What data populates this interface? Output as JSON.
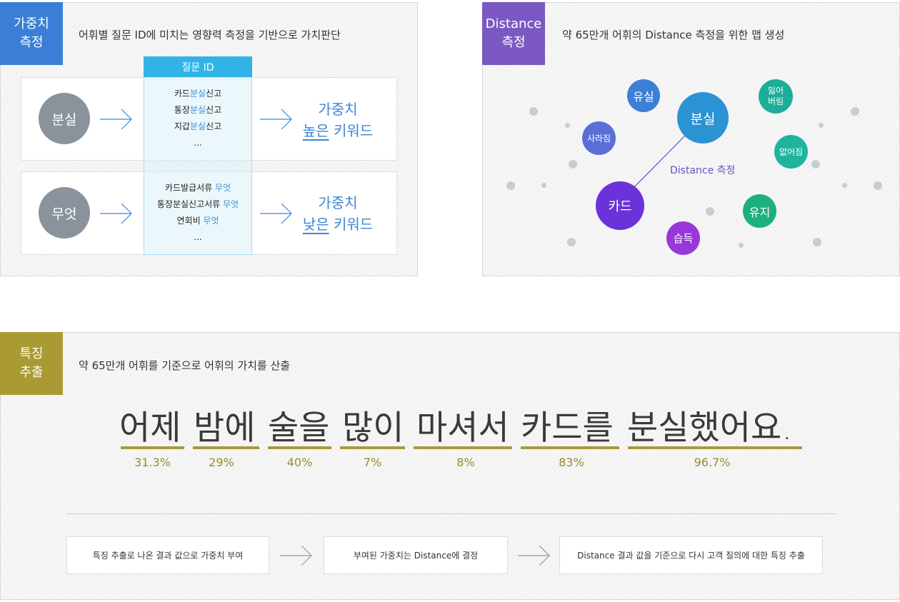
{
  "panel1": {
    "tag": [
      "가중치",
      "측정"
    ],
    "desc": "어휘별 질문 ID에 미치는 영향력 측정을 기반으로 가치판단",
    "colors": {
      "tag": "#3a7fd5",
      "header": "#32b3e8",
      "accent": "#3c86d2"
    },
    "column_header": "질문 ID",
    "rows": [
      {
        "word": "분실",
        "questions": [
          {
            "pre": "카드",
            "hl": "분실",
            "post": "신고"
          },
          {
            "pre": "통장",
            "hl": "분실",
            "post": "신고"
          },
          {
            "pre": "지갑",
            "hl": "분실",
            "post": "신고"
          },
          {
            "pre": "...",
            "hl": "",
            "post": ""
          }
        ],
        "result_line1": "가중치",
        "result_u": "높은",
        "result_rest": " 키워드"
      },
      {
        "word": "무엇",
        "questions": [
          {
            "pre": "카드발급서류 ",
            "hl": "무엇",
            "post": ""
          },
          {
            "pre": "통장분실신고서류 ",
            "hl": "무엇",
            "post": ""
          },
          {
            "pre": "연회비 ",
            "hl": "무엇",
            "post": ""
          },
          {
            "pre": "...",
            "hl": "",
            "post": ""
          }
        ],
        "result_line1": "가중치",
        "result_u": "낮은",
        "result_rest": " 키워드"
      }
    ]
  },
  "panel2": {
    "tag": [
      "Distance",
      "측정"
    ],
    "desc": "약 65만개 어휘의 Distance 측정을 위한 맵 생성",
    "colors": {
      "tag": "#7b58c2",
      "link_label": "#6a4fc0"
    },
    "link_label": "Distance 측정",
    "bubbles": {
      "yusil": {
        "label": "유실",
        "color": "#3b7fd6"
      },
      "bunsil": {
        "label": "분실",
        "color": "#2b93d4"
      },
      "ilheobeorim": {
        "label": "잃어\n버림",
        "color": "#1cae98"
      },
      "sarajim": {
        "label": "사라짐",
        "color": "#5a6fd6"
      },
      "eopseojim": {
        "label": "없어짐",
        "color": "#1eb59c"
      },
      "card": {
        "label": "카드",
        "color": "#6a32d8"
      },
      "yuji": {
        "label": "유지",
        "color": "#1eb07c"
      },
      "seupdeuk": {
        "label": "습득",
        "color": "#9938d9"
      }
    }
  },
  "panel3": {
    "tag": [
      "특징",
      "추출"
    ],
    "desc": "약 65만개 어휘를 기준으로 어휘의 가치를 산출",
    "colors": {
      "tag": "#a99a34",
      "bar": "#a89a3c",
      "pct": "#9a8a2e"
    },
    "words": [
      "어제",
      "밤에",
      "술을",
      "많이",
      "마셔서",
      "카드를",
      "분실했어요."
    ],
    "percents": [
      "31.3%",
      "29%",
      "40%",
      "7%",
      "8%",
      "83%",
      "96.7%"
    ],
    "steps": [
      "특징 추출로 나온 결과 값으로 가중치 부여",
      "부여된 가중치는 Distance에 결정",
      "Distance 결과 값을 기준으로 다시 고객 질의에 대한 특징 추출"
    ]
  }
}
